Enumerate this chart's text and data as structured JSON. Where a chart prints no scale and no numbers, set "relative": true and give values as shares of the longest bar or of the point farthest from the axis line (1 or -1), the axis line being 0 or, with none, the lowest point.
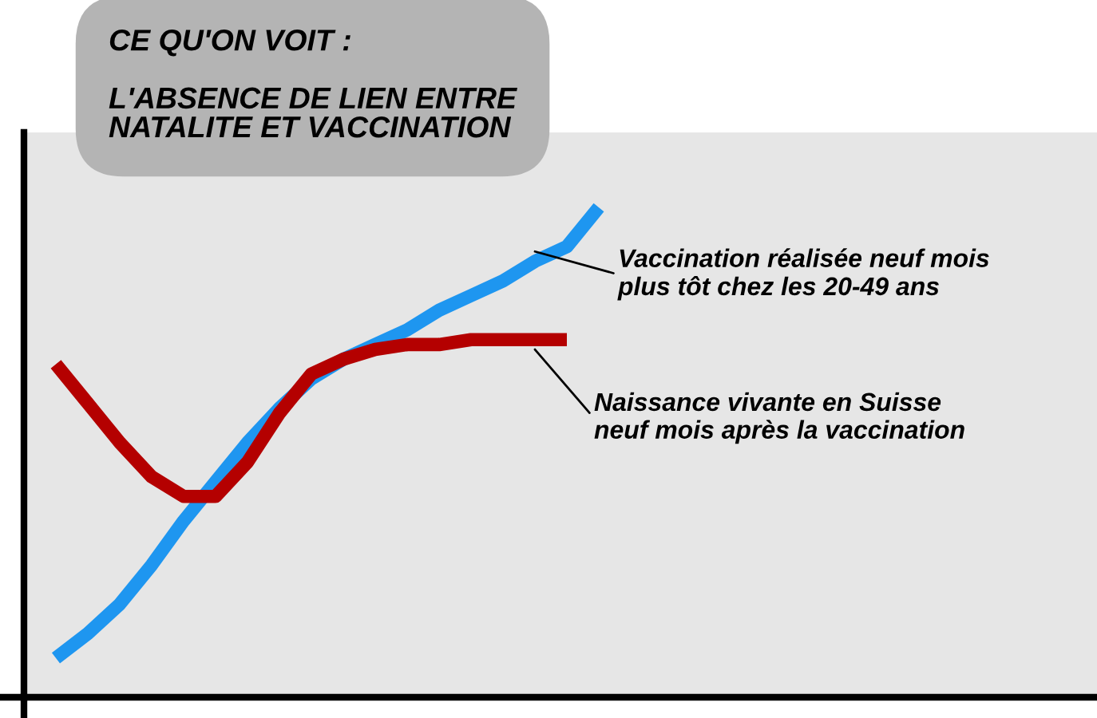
{
  "chart_data": {
    "type": "line",
    "title": "CE QU'ON VOIT :\n\nL'ABSENCE DE LIEN ENTRE\nNATALITE ET VACCINATION",
    "relative": true,
    "categories": [
      null,
      null,
      null,
      null,
      null,
      null,
      null,
      null,
      null,
      null,
      null,
      null,
      null,
      null,
      null,
      null,
      null,
      null
    ],
    "series": [
      {
        "name": "Vaccination réalisée neuf mois\nplus tôt chez les 20-49 ans",
        "color": "#1e96f0",
        "values": [
          0.08,
          0.13,
          0.19,
          0.27,
          0.36,
          0.44,
          0.52,
          0.59,
          0.65,
          0.69,
          0.72,
          0.75,
          0.79,
          0.82,
          0.85,
          0.89,
          0.92,
          1.0
        ]
      },
      {
        "name": "Naissance vivante en Suisse\nneuf mois après la vaccination",
        "color": "#b40000",
        "values": [
          0.68,
          0.6,
          0.52,
          0.45,
          0.41,
          0.41,
          0.48,
          0.58,
          0.66,
          0.69,
          0.71,
          0.72,
          0.72,
          0.73,
          0.73,
          0.73,
          0.73,
          null
        ]
      }
    ],
    "grid": false,
    "legend": false,
    "marker": "none",
    "line_style": "solid"
  }
}
